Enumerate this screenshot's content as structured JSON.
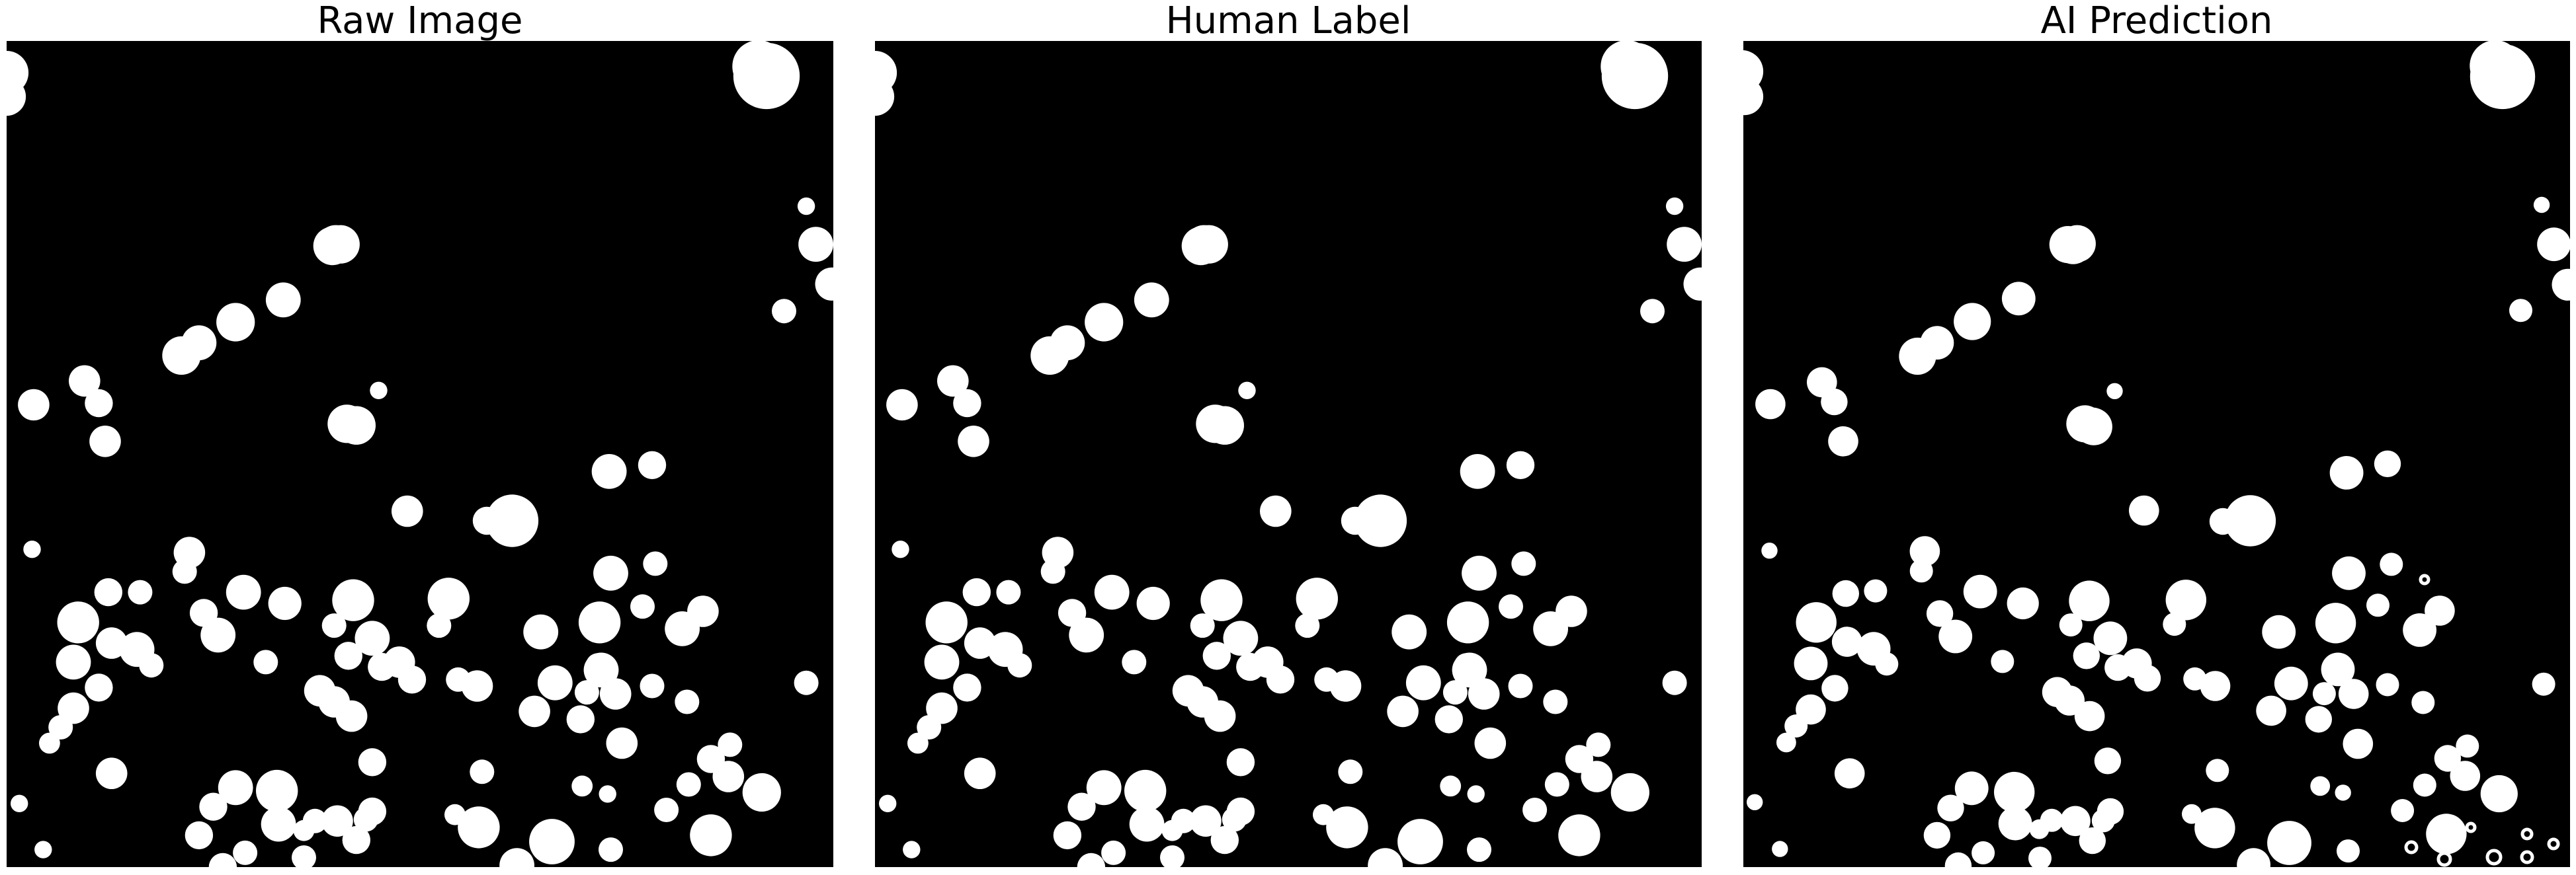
{
  "panels": [
    {
      "title": "Raw Image",
      "kind": "raw"
    },
    {
      "title": "Human Label",
      "kind": "label"
    },
    {
      "title": "AI Prediction",
      "kind": "prediction"
    }
  ],
  "colors": {
    "background": "#000000",
    "foreground": "#ffffff"
  }
}
